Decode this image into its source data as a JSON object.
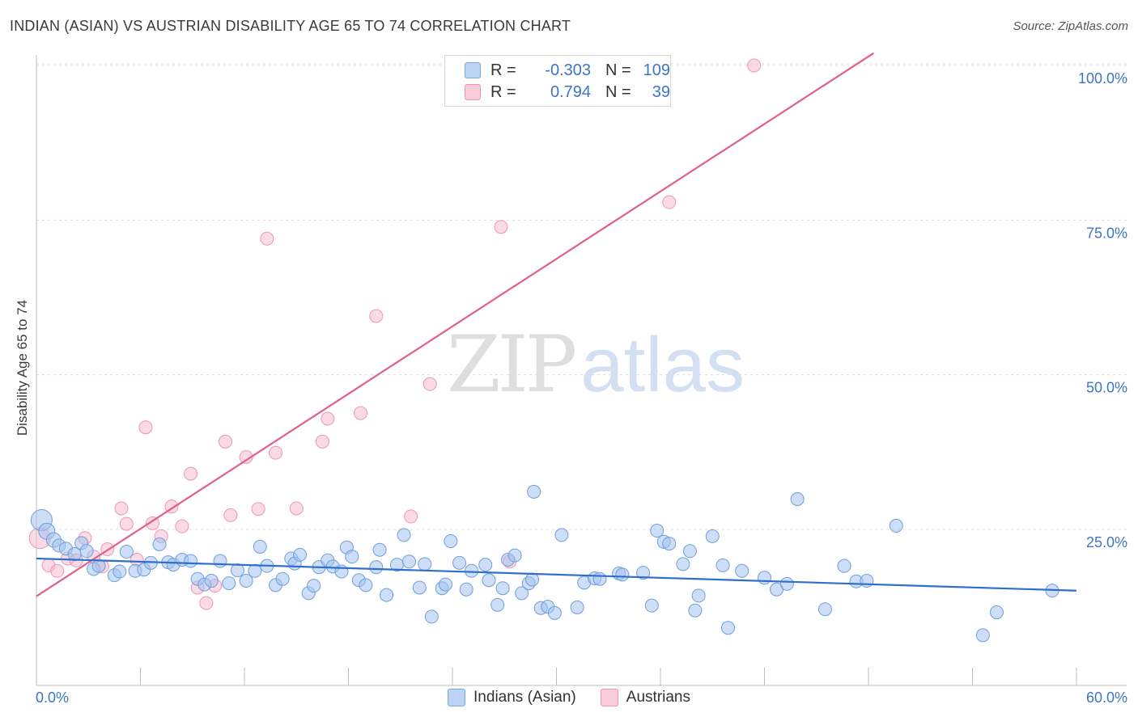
{
  "title": "INDIAN (ASIAN) VS AUSTRIAN DISABILITY AGE 65 TO 74 CORRELATION CHART",
  "source": "Source: ZipAtlas.com",
  "watermark": {
    "zip": "ZIP",
    "atlas": "atlas"
  },
  "legend": {
    "rows": [
      {
        "r_label": "R =",
        "r_value": "-0.303",
        "n_label": "N =",
        "n_value": "109"
      },
      {
        "r_label": "R =",
        "r_value": "0.794",
        "n_label": "N =",
        "n_value": "39"
      }
    ]
  },
  "bottom_legend": [
    "Indians (Asian)",
    "Austrians"
  ],
  "chart_data": {
    "type": "scatter",
    "title": "INDIAN (ASIAN) VS AUSTRIAN DISABILITY AGE 65 TO 74 CORRELATION CHART",
    "xlabel": "",
    "ylabel": "Disability Age 65 to 74",
    "xlim": [
      0,
      60
    ],
    "ylim": [
      0,
      102
    ],
    "x_tick_labels": [
      "0.0%",
      "60.0%"
    ],
    "y_ticks": [
      25,
      50,
      75,
      100
    ],
    "y_tick_labels": [
      "25.0%",
      "50.0%",
      "75.0%",
      "100.0%"
    ],
    "grid": "horizontal dashed",
    "colors": {
      "indians": "#a4c2ee",
      "indians_line": "#2f6fcc",
      "austrians": "#f6b6c9",
      "austrians_line": "#e0608a",
      "tick": "#3d75c4"
    },
    "series": [
      {
        "name": "Indians (Asian)",
        "color": "#a4c2ee",
        "trend": {
          "x": [
            0,
            60
          ],
          "y": [
            20.3,
            15.1
          ]
        },
        "points": [
          [
            0.3,
            26.5,
            13
          ],
          [
            0.6,
            24.7,
            10
          ],
          [
            1.0,
            23.3,
            9
          ],
          [
            1.3,
            22.4,
            8
          ],
          [
            1.7,
            21.9,
            8
          ],
          [
            2.2,
            21.0,
            8
          ],
          [
            2.6,
            22.8,
            8
          ],
          [
            2.9,
            21.5,
            8
          ],
          [
            3.3,
            18.6,
            8
          ],
          [
            3.6,
            19.1,
            8
          ],
          [
            4.5,
            17.6,
            8
          ],
          [
            4.8,
            18.2,
            8
          ],
          [
            5.2,
            21.4,
            8
          ],
          [
            5.7,
            18.3,
            8
          ],
          [
            6.2,
            18.5,
            8
          ],
          [
            6.6,
            19.6,
            8
          ],
          [
            7.1,
            22.6,
            8
          ],
          [
            7.6,
            19.7,
            8
          ],
          [
            7.9,
            19.3,
            8
          ],
          [
            8.4,
            20.1,
            8
          ],
          [
            8.9,
            19.9,
            8
          ],
          [
            9.3,
            17.0,
            8
          ],
          [
            9.7,
            16.1,
            8
          ],
          [
            10.1,
            16.7,
            8
          ],
          [
            10.6,
            19.9,
            8
          ],
          [
            11.1,
            16.3,
            8
          ],
          [
            11.6,
            18.4,
            8
          ],
          [
            12.1,
            16.7,
            8
          ],
          [
            12.6,
            18.3,
            8
          ],
          [
            12.9,
            22.2,
            8
          ],
          [
            13.3,
            19.1,
            8
          ],
          [
            13.8,
            16.0,
            8
          ],
          [
            14.2,
            17.0,
            8
          ],
          [
            14.7,
            20.3,
            8
          ],
          [
            14.9,
            19.5,
            8
          ],
          [
            15.2,
            20.9,
            8
          ],
          [
            15.7,
            14.7,
            8
          ],
          [
            16.0,
            15.9,
            8
          ],
          [
            16.3,
            18.9,
            8
          ],
          [
            16.8,
            20.0,
            8
          ],
          [
            17.1,
            19.0,
            8
          ],
          [
            17.6,
            18.2,
            8
          ],
          [
            17.9,
            22.1,
            8
          ],
          [
            18.2,
            20.6,
            8
          ],
          [
            18.6,
            16.8,
            8
          ],
          [
            19.0,
            16.0,
            8
          ],
          [
            19.6,
            18.9,
            8
          ],
          [
            19.8,
            21.7,
            8
          ],
          [
            20.2,
            14.4,
            8
          ],
          [
            20.8,
            19.3,
            8
          ],
          [
            21.2,
            24.1,
            8
          ],
          [
            21.5,
            19.8,
            8
          ],
          [
            22.1,
            15.6,
            8
          ],
          [
            22.4,
            19.4,
            8
          ],
          [
            22.8,
            10.9,
            8
          ],
          [
            23.4,
            15.5,
            8
          ],
          [
            23.6,
            16.1,
            8
          ],
          [
            23.9,
            23.1,
            8
          ],
          [
            24.4,
            19.6,
            8
          ],
          [
            24.8,
            15.3,
            8
          ],
          [
            25.1,
            18.3,
            8
          ],
          [
            25.9,
            19.3,
            8
          ],
          [
            26.1,
            16.8,
            8
          ],
          [
            26.6,
            12.8,
            8
          ],
          [
            26.9,
            15.5,
            8
          ],
          [
            27.2,
            20.1,
            8
          ],
          [
            27.6,
            20.8,
            8
          ],
          [
            28.0,
            14.7,
            8
          ],
          [
            28.4,
            16.3,
            8
          ],
          [
            28.6,
            16.9,
            8
          ],
          [
            28.7,
            31.1,
            8
          ],
          [
            29.1,
            12.3,
            8
          ],
          [
            29.5,
            12.5,
            8
          ],
          [
            29.9,
            11.5,
            8
          ],
          [
            30.3,
            24.1,
            8
          ],
          [
            31.2,
            12.4,
            8
          ],
          [
            31.6,
            16.4,
            8
          ],
          [
            32.2,
            17.1,
            8
          ],
          [
            32.5,
            17.0,
            8
          ],
          [
            33.6,
            17.9,
            8
          ],
          [
            33.8,
            17.7,
            8
          ],
          [
            35.0,
            18.0,
            8
          ],
          [
            35.5,
            12.7,
            8
          ],
          [
            35.8,
            24.8,
            8
          ],
          [
            36.2,
            23.0,
            8
          ],
          [
            36.5,
            22.7,
            8
          ],
          [
            37.3,
            19.4,
            8
          ],
          [
            37.7,
            21.5,
            8
          ],
          [
            38.0,
            11.9,
            8
          ],
          [
            38.2,
            14.3,
            8
          ],
          [
            39.0,
            23.9,
            8
          ],
          [
            39.6,
            19.2,
            8
          ],
          [
            39.9,
            9.1,
            8
          ],
          [
            40.7,
            18.3,
            8
          ],
          [
            42.0,
            17.2,
            8
          ],
          [
            42.7,
            15.3,
            8
          ],
          [
            43.3,
            16.2,
            8
          ],
          [
            43.9,
            29.9,
            8
          ],
          [
            45.5,
            12.1,
            8
          ],
          [
            46.6,
            19.1,
            8
          ],
          [
            47.3,
            16.6,
            8
          ],
          [
            47.9,
            16.7,
            8
          ],
          [
            49.6,
            25.6,
            8
          ],
          [
            54.6,
            7.9,
            8
          ],
          [
            55.4,
            11.6,
            8
          ],
          [
            58.6,
            15.1,
            8
          ]
        ]
      },
      {
        "name": "Austrians",
        "color": "#f6b6c9",
        "trend": {
          "x": [
            0,
            48.3
          ],
          "y": [
            14.2,
            102
          ]
        },
        "points": [
          [
            0.2,
            23.6,
            13
          ],
          [
            0.7,
            19.2,
            8
          ],
          [
            1.2,
            18.3,
            8
          ],
          [
            1.8,
            20.3,
            8
          ],
          [
            2.3,
            20.0,
            8
          ],
          [
            2.8,
            23.6,
            8
          ],
          [
            3.3,
            20.6,
            8
          ],
          [
            3.8,
            19.0,
            8
          ],
          [
            4.1,
            21.8,
            8
          ],
          [
            4.9,
            28.4,
            8
          ],
          [
            5.2,
            25.9,
            8
          ],
          [
            5.8,
            20.1,
            8
          ],
          [
            6.3,
            41.5,
            8
          ],
          [
            6.7,
            26.0,
            8
          ],
          [
            7.2,
            23.9,
            8
          ],
          [
            7.8,
            28.7,
            8
          ],
          [
            8.4,
            25.5,
            8
          ],
          [
            8.9,
            34.0,
            8
          ],
          [
            9.3,
            15.6,
            8
          ],
          [
            9.8,
            13.1,
            8
          ],
          [
            10.3,
            15.9,
            8
          ],
          [
            10.9,
            39.2,
            8
          ],
          [
            11.2,
            27.3,
            8
          ],
          [
            12.1,
            36.7,
            8
          ],
          [
            12.8,
            28.3,
            8
          ],
          [
            13.3,
            72.0,
            8
          ],
          [
            13.8,
            37.4,
            8
          ],
          [
            15.0,
            28.4,
            8
          ],
          [
            16.5,
            39.2,
            8
          ],
          [
            16.8,
            42.9,
            8
          ],
          [
            18.7,
            43.8,
            8
          ],
          [
            19.6,
            59.5,
            8
          ],
          [
            21.6,
            27.1,
            8
          ],
          [
            22.7,
            48.5,
            8
          ],
          [
            26.8,
            73.9,
            8
          ],
          [
            27.3,
            19.8,
            8
          ],
          [
            36.5,
            77.9,
            8
          ],
          [
            41.4,
            100.0,
            8
          ]
        ]
      }
    ]
  }
}
